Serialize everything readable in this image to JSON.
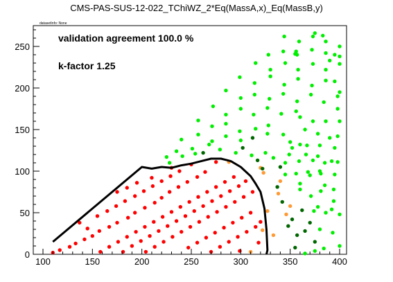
{
  "title": "CMS-PAS-SUS-12-022_TChiWZ_2*Eq(MassA,x)_Eq(MassB,y)",
  "dataset_info": "datasetInfo: None",
  "annotations": {
    "validation": "validation agreement 100.0 %",
    "kfactor": "k-factor 1.25"
  },
  "colors": {
    "excluded_both": "#ff0000",
    "allowed_both": "#00ee00",
    "excluded_official_only": "#ff9933",
    "excluded_smodels_only": "#006600",
    "contour": "#000000"
  },
  "chart_data": {
    "type": "scatter",
    "title": "CMS-PAS-SUS-12-022_TChiWZ_2*Eq(MassA,x)_Eq(MassB,y)",
    "xlabel": "",
    "ylabel": "",
    "xlim": [
      100,
      400
    ],
    "ylim": [
      0,
      275
    ],
    "xticks": [
      100,
      150,
      200,
      250,
      300,
      350,
      400
    ],
    "yticks": [
      0,
      50,
      100,
      150,
      200,
      250
    ],
    "grid": false,
    "legend": "none",
    "series": [
      {
        "color": "red",
        "points": [
          [
            110,
            2
          ],
          [
            117,
            5
          ],
          [
            127,
            9
          ],
          [
            133,
            13
          ],
          [
            142,
            18
          ],
          [
            150,
            22
          ],
          [
            157,
            28
          ],
          [
            167,
            33
          ],
          [
            175,
            38
          ],
          [
            186,
            44
          ],
          [
            193,
            50
          ],
          [
            203,
            56
          ],
          [
            213,
            62
          ],
          [
            220,
            68
          ],
          [
            228,
            75
          ],
          [
            237,
            81
          ],
          [
            246,
            87
          ],
          [
            256,
            93
          ],
          [
            264,
            99
          ],
          [
            137,
            38
          ],
          [
            145,
            31
          ],
          [
            155,
            46
          ],
          [
            165,
            52
          ],
          [
            174,
            58
          ],
          [
            183,
            64
          ],
          [
            193,
            70
          ],
          [
            202,
            76
          ],
          [
            211,
            82
          ],
          [
            220,
            88
          ],
          [
            229,
            94
          ],
          [
            238,
            100
          ],
          [
            158,
            3
          ],
          [
            167,
            9
          ],
          [
            176,
            15
          ],
          [
            185,
            21
          ],
          [
            194,
            27
          ],
          [
            203,
            33
          ],
          [
            212,
            39
          ],
          [
            221,
            45
          ],
          [
            230,
            51
          ],
          [
            239,
            57
          ],
          [
            248,
            63
          ],
          [
            257,
            69
          ],
          [
            266,
            75
          ],
          [
            275,
            81
          ],
          [
            284,
            87
          ],
          [
            293,
            93
          ],
          [
            181,
            3
          ],
          [
            190,
            10
          ],
          [
            199,
            16
          ],
          [
            208,
            22
          ],
          [
            217,
            28
          ],
          [
            226,
            34
          ],
          [
            235,
            40
          ],
          [
            244,
            46
          ],
          [
            253,
            52
          ],
          [
            262,
            58
          ],
          [
            271,
            64
          ],
          [
            280,
            70
          ],
          [
            289,
            76
          ],
          [
            298,
            82
          ],
          [
            305,
            88
          ],
          [
            204,
            3
          ],
          [
            213,
            9
          ],
          [
            222,
            15
          ],
          [
            231,
            21
          ],
          [
            240,
            27
          ],
          [
            249,
            33
          ],
          [
            258,
            39
          ],
          [
            267,
            45
          ],
          [
            276,
            51
          ],
          [
            285,
            57
          ],
          [
            294,
            63
          ],
          [
            303,
            69
          ],
          [
            312,
            75
          ],
          [
            247,
            8
          ],
          [
            256,
            14
          ],
          [
            265,
            20
          ],
          [
            274,
            26
          ],
          [
            283,
            32
          ],
          [
            292,
            38
          ],
          [
            301,
            44
          ],
          [
            310,
            50
          ],
          [
            270,
            3
          ],
          [
            279,
            9
          ],
          [
            288,
            15
          ],
          [
            297,
            21
          ],
          [
            306,
            27
          ],
          [
            315,
            33
          ],
          [
            320,
            39
          ],
          [
            299,
            4
          ],
          [
            318,
            14
          ],
          [
            175,
            75
          ],
          [
            185,
            80
          ],
          [
            195,
            86
          ],
          [
            210,
            92
          ],
          [
            230,
            104
          ],
          [
            250,
            108
          ],
          [
            275,
            111
          ]
        ]
      },
      {
        "color": "orange",
        "points": [
          [
            310,
            3
          ],
          [
            322,
            29
          ],
          [
            327,
            52
          ],
          [
            333,
            23
          ],
          [
            338,
            73
          ],
          [
            346,
            48
          ],
          [
            350,
            58
          ],
          [
            340,
            88
          ],
          [
            323,
            98
          ],
          [
            288,
            111
          ],
          [
            320,
            104
          ]
        ]
      },
      {
        "color": "dark-green",
        "points": [
          [
            262,
            122
          ],
          [
            302,
            128
          ],
          [
            317,
            113
          ],
          [
            312,
            140
          ],
          [
            322,
            103
          ],
          [
            337,
            81
          ],
          [
            342,
            63
          ],
          [
            348,
            34
          ],
          [
            352,
            42
          ],
          [
            357,
            23
          ],
          [
            365,
            28
          ],
          [
            370,
            38
          ],
          [
            375,
            15
          ],
          [
            355,
            8
          ],
          [
            362,
            53
          ],
          [
            340,
            105
          ]
        ]
      },
      {
        "color": "green",
        "points": [
          [
            225,
            117
          ],
          [
            241,
            118
          ],
          [
            254,
            121
          ],
          [
            240,
            138
          ],
          [
            257,
            144
          ],
          [
            271,
            136
          ],
          [
            285,
            142
          ],
          [
            300,
            137
          ],
          [
            257,
            161
          ],
          [
            271,
            154
          ],
          [
            285,
            157
          ],
          [
            299,
            148
          ],
          [
            315,
            151
          ],
          [
            328,
            155
          ],
          [
            272,
            178
          ],
          [
            285,
            168
          ],
          [
            300,
            175
          ],
          [
            313,
            168
          ],
          [
            327,
            176
          ],
          [
            341,
            169
          ],
          [
            356,
            172
          ],
          [
            285,
            197
          ],
          [
            300,
            188
          ],
          [
            314,
            192
          ],
          [
            329,
            187
          ],
          [
            343,
            193
          ],
          [
            357,
            184
          ],
          [
            371,
            192
          ],
          [
            299,
            213
          ],
          [
            314,
            206
          ],
          [
            330,
            214
          ],
          [
            344,
            204
          ],
          [
            358,
            211
          ],
          [
            372,
            203
          ],
          [
            386,
            209
          ],
          [
            315,
            230
          ],
          [
            330,
            222
          ],
          [
            345,
            230
          ],
          [
            358,
            222
          ],
          [
            373,
            229
          ],
          [
            386,
            222
          ],
          [
            400,
            229
          ],
          [
            328,
            240
          ],
          [
            343,
            244
          ],
          [
            357,
            240
          ],
          [
            372,
            246
          ],
          [
            386,
            242
          ],
          [
            400,
            238
          ],
          [
            344,
            262
          ],
          [
            359,
            256
          ],
          [
            373,
            262
          ],
          [
            386,
            256
          ],
          [
            400,
            250
          ],
          [
            355,
            241
          ],
          [
            356,
            244
          ],
          [
            375,
            266
          ],
          [
            383,
            263
          ],
          [
            395,
            240
          ],
          [
            390,
            233
          ],
          [
            366,
            120
          ],
          [
            378,
            118
          ],
          [
            392,
            112
          ],
          [
            352,
            128
          ],
          [
            367,
            131
          ],
          [
            380,
            131
          ],
          [
            395,
            128
          ],
          [
            345,
            110
          ],
          [
            359,
            112
          ],
          [
            373,
            113
          ],
          [
            385,
            110
          ],
          [
            398,
            111
          ],
          [
            360,
            78
          ],
          [
            371,
            70
          ],
          [
            381,
            76
          ],
          [
            394,
            78
          ],
          [
            345,
            96
          ],
          [
            356,
            97
          ],
          [
            368,
            99
          ],
          [
            381,
            97
          ],
          [
            395,
            96
          ],
          [
            350,
            135
          ],
          [
            365,
            150
          ],
          [
            378,
            145
          ],
          [
            390,
            140
          ],
          [
            400,
            160
          ],
          [
            374,
            52
          ],
          [
            386,
            50
          ],
          [
            400,
            48
          ],
          [
            380,
            30
          ],
          [
            393,
            26
          ],
          [
            400,
            10
          ],
          [
            384,
            7
          ],
          [
            375,
            4
          ],
          [
            365,
            1
          ],
          [
            360,
            165
          ],
          [
            373,
            160
          ],
          [
            386,
            160
          ],
          [
            398,
            175
          ],
          [
            400,
            195
          ],
          [
            395,
            208
          ],
          [
            325,
            122
          ],
          [
            333,
            116
          ],
          [
            349,
            120
          ],
          [
            360,
            85
          ],
          [
            385,
            83
          ],
          [
            394,
            64
          ],
          [
            378,
            57
          ],
          [
            370,
            95
          ],
          [
            392,
            54
          ],
          [
            380,
            100
          ],
          [
            398,
            142
          ],
          [
            360,
            132
          ],
          [
            384,
            183
          ],
          [
            398,
            190
          ],
          [
            311,
            119
          ],
          [
            295,
            122
          ],
          [
            279,
            126
          ],
          [
            268,
            132
          ],
          [
            251,
            127
          ],
          [
            235,
            124
          ],
          [
            228,
            110
          ],
          [
            327,
            145
          ],
          [
            343,
            144
          ]
        ]
      }
    ],
    "contour": {
      "color": "black",
      "points": [
        [
          110,
          15
        ],
        [
          200,
          105
        ],
        [
          210,
          103
        ],
        [
          220,
          105
        ],
        [
          230,
          104
        ],
        [
          240,
          107
        ],
        [
          250,
          109
        ],
        [
          260,
          112
        ],
        [
          270,
          115
        ],
        [
          280,
          115
        ],
        [
          290,
          112
        ],
        [
          300,
          105
        ],
        [
          310,
          94
        ],
        [
          315,
          85
        ],
        [
          320,
          75
        ],
        [
          324,
          55
        ],
        [
          326,
          30
        ],
        [
          327,
          5
        ],
        [
          326,
          0
        ]
      ]
    }
  }
}
